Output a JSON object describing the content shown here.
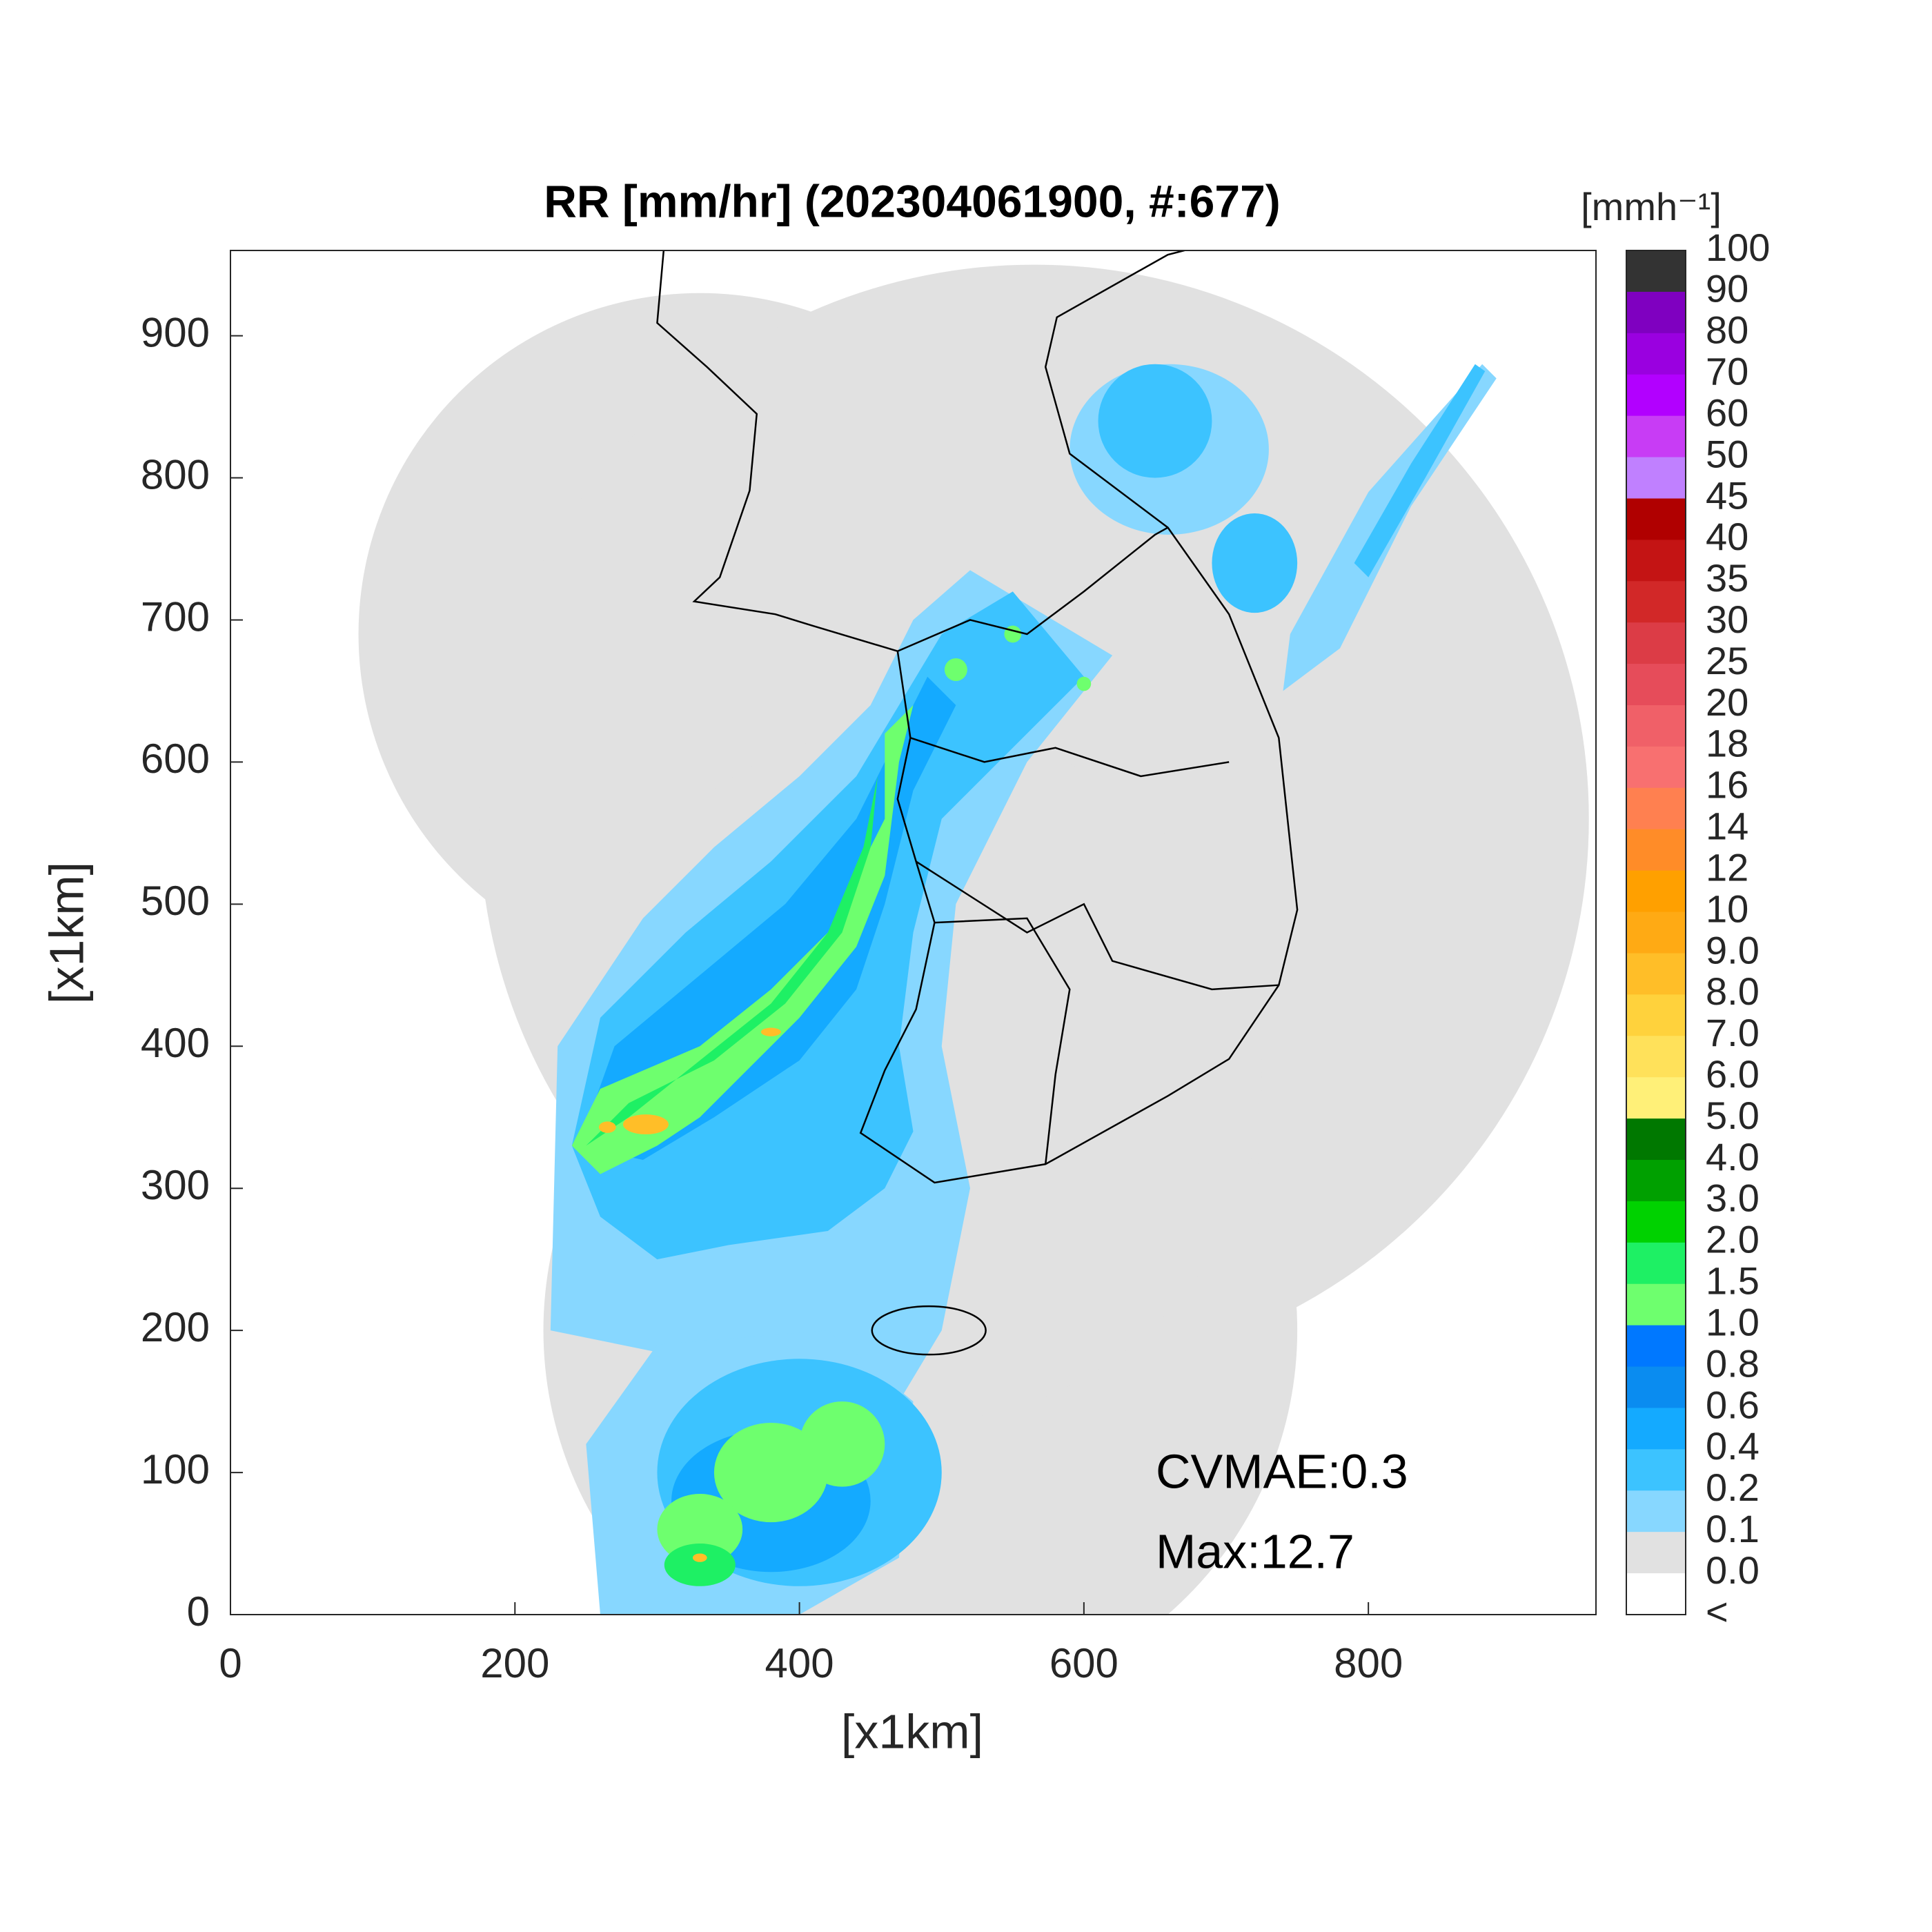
{
  "chart_data": {
    "type": "heatmap",
    "title": "RR [mm/hr] (202304061900, #:677)",
    "xlabel": "[x1km]",
    "ylabel": "[x1km]",
    "xlim": [
      0,
      960
    ],
    "ylim": [
      0,
      960
    ],
    "xticks": [
      0,
      200,
      400,
      600,
      800
    ],
    "yticks": [
      0,
      100,
      200,
      300,
      400,
      500,
      600,
      700,
      800,
      900
    ],
    "annotations": [
      "CVMAE:0.3",
      "Max:12.7"
    ],
    "colorbar": {
      "label": "[mmh⁻¹]",
      "labels": [
        "100",
        "90",
        "80",
        "70",
        "60",
        "50",
        "45",
        "40",
        "35",
        "30",
        "25",
        "20",
        "18",
        "16",
        "14",
        "12",
        "10",
        "9.0",
        "8.0",
        "7.0",
        "6.0",
        "5.0",
        "4.0",
        "3.0",
        "2.0",
        "1.5",
        "1.0",
        "0.8",
        "0.6",
        "0.4",
        "0.2",
        "0.1",
        "0.0",
        "<"
      ],
      "colors": [
        "#333333",
        "#7f00c0",
        "#9a00e0",
        "#b200ff",
        "#c83cf5",
        "#c080ff",
        "#b00000",
        "#c41414",
        "#d22828",
        "#dc3c46",
        "#e64c5a",
        "#f06068",
        "#f87070",
        "#ff8050",
        "#ff8c28",
        "#ffa000",
        "#ffaa14",
        "#ffbe28",
        "#ffd23c",
        "#ffe15a",
        "#fff078",
        "#007800",
        "#00a000",
        "#00d200",
        "#1ef064",
        "#6eff6e",
        "#0078ff",
        "#0a8cf0",
        "#14aaff",
        "#3cc3ff",
        "#87d7ff",
        "#e1e1e1",
        "#ffffff"
      ]
    }
  }
}
